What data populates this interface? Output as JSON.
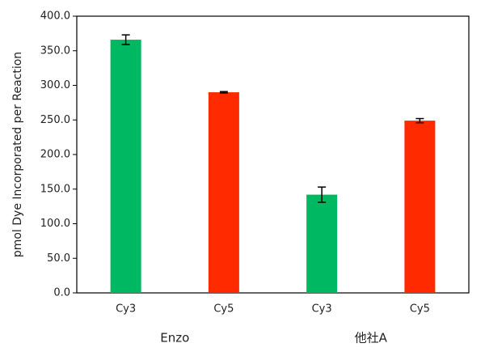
{
  "chart_data": {
    "type": "bar",
    "y_label": "pmol Dye Incorporated per Reaction",
    "categories": [
      "Cy3",
      "Cy5",
      "Cy3",
      "Cy5"
    ],
    "groups": [
      "Enzo",
      "他社A"
    ],
    "values": [
      366,
      290,
      142,
      249
    ],
    "errors": [
      7,
      1,
      11,
      3
    ],
    "colors": [
      "#00b862",
      "#ff2a00",
      "#00b862",
      "#ff2a00"
    ],
    "ylim": [
      0,
      400
    ],
    "yticks": [
      {
        "value": 0,
        "label": "0.0"
      },
      {
        "value": 50,
        "label": "50.0"
      },
      {
        "value": 100,
        "label": "100.0"
      },
      {
        "value": 150,
        "label": "150.0"
      },
      {
        "value": 200,
        "label": "200.0"
      },
      {
        "value": 250,
        "label": "250.0"
      },
      {
        "value": 300,
        "label": "300.0"
      },
      {
        "value": 350,
        "label": "350.0"
      },
      {
        "value": 400,
        "label": "400.0"
      }
    ],
    "grid": false
  }
}
